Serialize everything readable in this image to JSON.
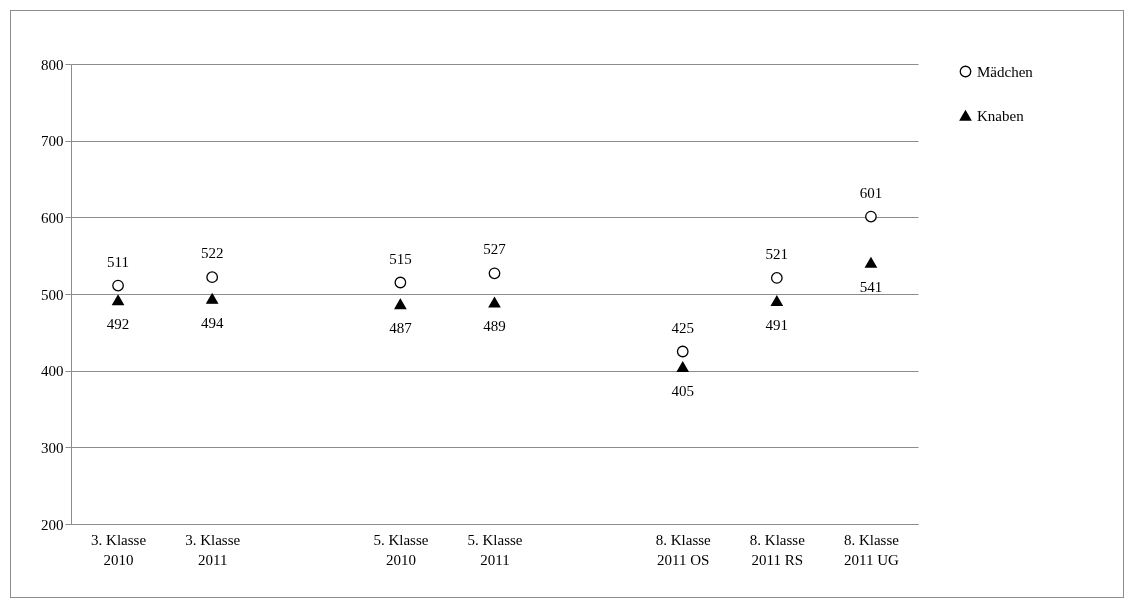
{
  "chart_data": {
    "type": "scatter",
    "categories": [
      "3. Klasse 2010",
      "3. Klasse 2011",
      null,
      "5. Klasse 2010",
      "5. Klasse 2011",
      null,
      "8. Klasse 2011 OS",
      "8. Klasse 2011 RS",
      "8. Klasse 2011 UG"
    ],
    "series": [
      {
        "name": "Mädchen",
        "color": "#000000",
        "marker": "circle",
        "values": [
          511,
          522,
          null,
          515,
          527,
          null,
          425,
          521,
          601
        ]
      },
      {
        "name": "Knaben",
        "color": "#000000",
        "marker": "triangle",
        "values": [
          492,
          494,
          null,
          487,
          489,
          null,
          405,
          491,
          541
        ]
      }
    ],
    "ylim": [
      200,
      800
    ],
    "yticks": [
      200,
      300,
      400,
      500,
      600,
      700,
      800
    ],
    "grid": "y",
    "legend": "right",
    "data_labels": true
  }
}
